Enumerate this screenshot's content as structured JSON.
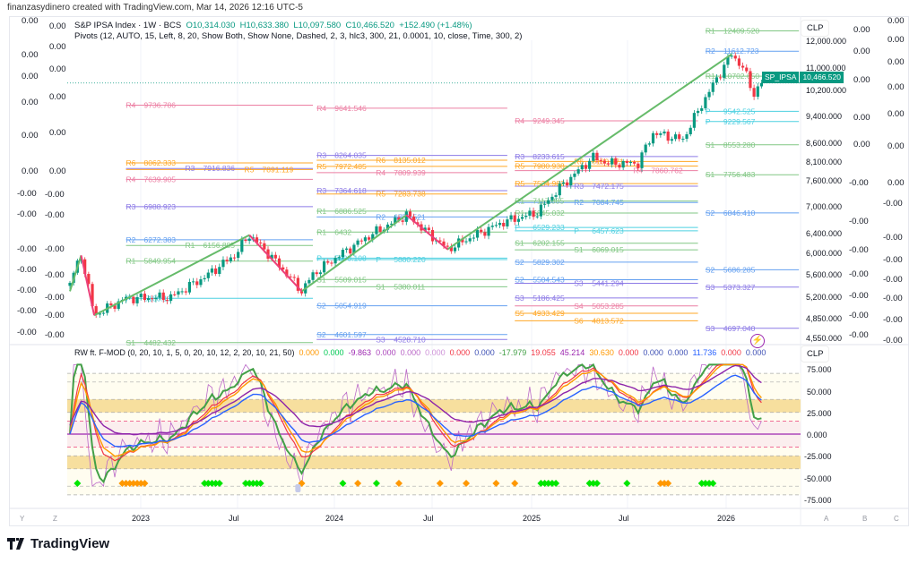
{
  "credit": "finanzasydinero created with TradingView.com, Mar 14, 2026 12:16 UTC-5",
  "symbol": {
    "title": "S&P IPSA Index · 1W · BCS",
    "open": "O10,314.030",
    "high": "H10,633.380",
    "low": "L10,097.580",
    "close": "C10,466.520",
    "change": "+152.490 (+1.48%)",
    "pivots_label": "Pivots (12, AUTO, 15, Left, 8, 20, Show Both, Show None, Dashed, 2, 3, hlc3, 300, 21, 0.0001, 10, close, Time, 300, 2)"
  },
  "last_price": {
    "ticker": "SP_IPSA",
    "value": "10,466.520",
    "color": "#089981"
  },
  "currency": "CLP",
  "price_axis": [
    "12,000.000",
    "11,000.000",
    "10,200.000",
    "9,400.000",
    "8,600.000",
    "8,100.000",
    "7,600.000",
    "7,000.000",
    "6,400.000",
    "6,000.000",
    "5,600.000",
    "5,200.000",
    "4,850.000",
    "4,550.000"
  ],
  "left_scale_1": [
    "0.00",
    "0.00",
    "0.00",
    "0.00",
    "0.00",
    "0.00",
    "-0.00",
    "-0.00",
    "-0.00",
    "-0.00",
    "-0.00",
    "-0.00",
    "-0.00"
  ],
  "left_scale_2": [
    "0.00",
    "0.00",
    "0.00",
    "0.00",
    "0.00",
    "0.00",
    "-0.00",
    "-0.00",
    "-0.00",
    "-0.00",
    "-0.00",
    "-0.00",
    "-0.00"
  ],
  "right_scale_1": [
    "0.00",
    "0.00",
    "0.00",
    "0.00",
    "0.00",
    "-0.00",
    "-0.00",
    "-0.00",
    "-0.00",
    "-0.00",
    "-0.00",
    "-0.00"
  ],
  "right_scale_2": [
    "0.00",
    "0.00",
    "0.00",
    "0.00",
    "0.00",
    "0.00",
    "0.00",
    "-0.00",
    "-0.00",
    "-0.00",
    "-0.00",
    "-0.00",
    "-0.00",
    "-0.00"
  ],
  "time_axis": [
    "2023",
    "Jul",
    "2024",
    "Jul",
    "2025",
    "Jul",
    "2026"
  ],
  "corner_letters": {
    "left": [
      "Y",
      "Z"
    ],
    "right": [
      "A",
      "B",
      "C"
    ]
  },
  "oscillator": {
    "label": "RW ft. F-MOD (0, 20, 10, 1, 5, 0, 20, 10, 12, 2, 20, 10, 21, 50)",
    "values": [
      {
        "v": "0.000",
        "c": "#ff9800"
      },
      {
        "v": "0.000",
        "c": "#00c853"
      },
      {
        "v": "-9.863",
        "c": "#9c27b0"
      },
      {
        "v": "0.000",
        "c": "#ab47bc"
      },
      {
        "v": "0.000",
        "c": "#ba68c8"
      },
      {
        "v": "0.000",
        "c": "#ce93d8"
      },
      {
        "v": "0.000",
        "c": "#f23645"
      },
      {
        "v": "0.000",
        "c": "#3f51b5"
      },
      {
        "v": "-17.979",
        "c": "#43a047"
      },
      {
        "v": "19.055",
        "c": "#f23645"
      },
      {
        "v": "45.214",
        "c": "#9c27b0"
      },
      {
        "v": "30.630",
        "c": "#ff9800"
      },
      {
        "v": "0.000",
        "c": "#f23645"
      },
      {
        "v": "0.000",
        "c": "#3f51b5"
      },
      {
        "v": "0.000",
        "c": "#3f51b5"
      },
      {
        "v": "11.736",
        "c": "#2962ff"
      },
      {
        "v": "0.000",
        "c": "#f23645"
      },
      {
        "v": "0.000",
        "c": "#3f51b5"
      }
    ],
    "axis": [
      "75.000",
      "50.000",
      "25.000",
      "0.000",
      "-25.000",
      "-50.000",
      "-75.000"
    ],
    "green_markers_weeks": [
      2,
      36,
      37,
      38,
      39,
      40,
      47,
      48,
      49,
      50,
      51,
      73,
      82,
      126,
      127,
      128,
      129,
      130,
      139,
      140,
      141,
      149,
      169,
      170,
      171,
      172
    ],
    "orange_markers_weeks": [
      14,
      15,
      16,
      17,
      18,
      19,
      20,
      62,
      77,
      88,
      99,
      106,
      114,
      119,
      158,
      159,
      160
    ],
    "hourglass_week": 61
  },
  "logo": "TradingView",
  "colors": {
    "up": "#089981",
    "down": "#f23645",
    "trend_up": "#66bb6a",
    "trend_down": "#ec407a",
    "R1": "#81c784",
    "R2": "#64a0f0",
    "R3": "#8c7ae6",
    "R4": "#ec7fa3",
    "R5": "#ffa726",
    "R6": "#ffa726",
    "P": "#4dd0e1",
    "S1": "#81c784",
    "S2": "#64a0f0",
    "S3": "#8c7ae6",
    "S4": "#ec7fa3",
    "S5": "#ffa726",
    "S6": "#ffa726"
  },
  "chart_data": {
    "type": "candlestick",
    "title": "S&P IPSA Index · 1W · BCS",
    "y_scale": "log",
    "ylim": [
      4550,
      12000
    ],
    "x_unit": "weeks since start (Aug 2022)",
    "close_path": [
      [
        0,
        5450
      ],
      [
        3,
        5960
      ],
      [
        6.5,
        4900
      ],
      [
        15,
        5180
      ],
      [
        27,
        5200
      ],
      [
        36,
        5550
      ],
      [
        44,
        5960
      ],
      [
        48,
        6370
      ],
      [
        53,
        6000
      ],
      [
        62,
        5300
      ],
      [
        65,
        5600
      ],
      [
        72,
        5960
      ],
      [
        80,
        6350
      ],
      [
        90,
        6800
      ],
      [
        96,
        6400
      ],
      [
        101,
        6080
      ],
      [
        108,
        6350
      ],
      [
        116,
        6650
      ],
      [
        125,
        6850
      ],
      [
        131,
        7430
      ],
      [
        140,
        8210
      ],
      [
        144,
        8050
      ],
      [
        152,
        8050
      ],
      [
        156,
        8890
      ],
      [
        164,
        8700
      ],
      [
        171,
        10180
      ],
      [
        177,
        11500
      ],
      [
        180,
        11000
      ],
      [
        183,
        10100
      ],
      [
        185,
        10466.52
      ]
    ],
    "trendlines_up": [
      [
        [
          6.5,
          4900
        ],
        [
          48,
          6370
        ]
      ],
      [
        [
          62,
          5300
        ],
        [
          90,
          6800
        ]
      ],
      [
        [
          101,
          6080
        ],
        [
          177,
          11500
        ]
      ],
      [
        [
          0,
          5300
        ],
        [
          3,
          5960
        ]
      ]
    ],
    "trendlines_down": [
      [
        [
          3,
          5960
        ],
        [
          6.5,
          4900
        ]
      ],
      [
        [
          48,
          6370
        ],
        [
          62,
          5300
        ]
      ],
      [
        [
          90,
          6800
        ],
        [
          101,
          6080
        ]
      ]
    ],
    "pivot_periods": {
      "A": [
        15,
        65
      ],
      "B": [
        66,
        117
      ],
      "C": [
        119,
        168
      ],
      "D": [
        170,
        195
      ]
    },
    "pivots": [
      [
        "R4",
        "9736.786",
        "A"
      ],
      [
        "R6",
        "8062.333",
        "A"
      ],
      [
        "R3",
        "7916.836",
        "A"
      ],
      [
        "R5",
        "7891.119",
        "A"
      ],
      [
        "R4",
        "7639.905",
        "A"
      ],
      [
        "R3",
        "6988.923",
        "A"
      ],
      [
        "R2",
        "6272.383",
        "A"
      ],
      [
        "R1",
        "6156.885",
        "A"
      ],
      [
        "R1",
        "5849.954",
        "A"
      ],
      [
        "P",
        "5180.13",
        "A"
      ],
      [
        "S1",
        "4482.432",
        "A"
      ],
      [
        "R4",
        "9641.546",
        "B"
      ],
      [
        "R3",
        "8264.035",
        "B"
      ],
      [
        "R6",
        "8135.012",
        "B"
      ],
      [
        "R5",
        "7972.485",
        "B"
      ],
      [
        "R4",
        "7809.939",
        "B"
      ],
      [
        "R3",
        "7364.618",
        "B"
      ],
      [
        "R5",
        "7283.738",
        "B"
      ],
      [
        "R1",
        "6886.525",
        "B"
      ],
      [
        "R2",
        "6757.521",
        "B"
      ],
      [
        "R1",
        "6432",
        "B"
      ],
      [
        "P",
        "5908.108",
        "B"
      ],
      [
        "P",
        "5880.220",
        "B"
      ],
      [
        "S1",
        "5509.015",
        "B"
      ],
      [
        "S1",
        "5380.011",
        "B"
      ],
      [
        "S2",
        "5054.919",
        "B"
      ],
      [
        "S2",
        "4601.597",
        "B"
      ],
      [
        "S3",
        "4528.710",
        "B"
      ],
      [
        "R4",
        "9249.345",
        "C"
      ],
      [
        "R3",
        "8233.615",
        "C"
      ],
      [
        "R6",
        "8100.471",
        "C"
      ],
      [
        "R5",
        "7980.938",
        "C"
      ],
      [
        "R4",
        "7860.762",
        "C"
      ],
      [
        "R5",
        "7534.982",
        "C"
      ],
      [
        "R3",
        "7472.175",
        "C"
      ],
      [
        "R1",
        "7117.885",
        "C"
      ],
      [
        "R2",
        "7084.745",
        "C"
      ],
      [
        "R1",
        "6845.032",
        "C"
      ],
      [
        "P",
        "6529.233",
        "C"
      ],
      [
        "P",
        "6457.623",
        "C"
      ],
      [
        "S1",
        "6202.155",
        "C"
      ],
      [
        "S1",
        "6069.015",
        "C"
      ],
      [
        "S2",
        "5829.302",
        "C"
      ],
      [
        "S2",
        "5504.543",
        "C"
      ],
      [
        "S3",
        "5441.294",
        "C"
      ],
      [
        "S3",
        "5186.425",
        "C"
      ],
      [
        "S4",
        "5053.285",
        "C"
      ],
      [
        "S5",
        "4933.429",
        "C"
      ],
      [
        "S6",
        "4813.572",
        "C"
      ],
      [
        "R1",
        "12409.520",
        "D"
      ],
      [
        "R2",
        "11612.723",
        "D"
      ],
      [
        "R1",
        "10702.650",
        "D"
      ],
      [
        "P",
        "9542.525",
        "D"
      ],
      [
        "P",
        "9229.567",
        "D"
      ],
      [
        "S1",
        "8553.280",
        "D"
      ],
      [
        "S1",
        "7756.483",
        "D"
      ],
      [
        "S2",
        "6846.410",
        "D"
      ],
      [
        "S2",
        "5686.285",
        "D"
      ],
      [
        "S3",
        "5373.327",
        "D"
      ],
      [
        "S3",
        "4697.040",
        "D"
      ]
    ]
  }
}
